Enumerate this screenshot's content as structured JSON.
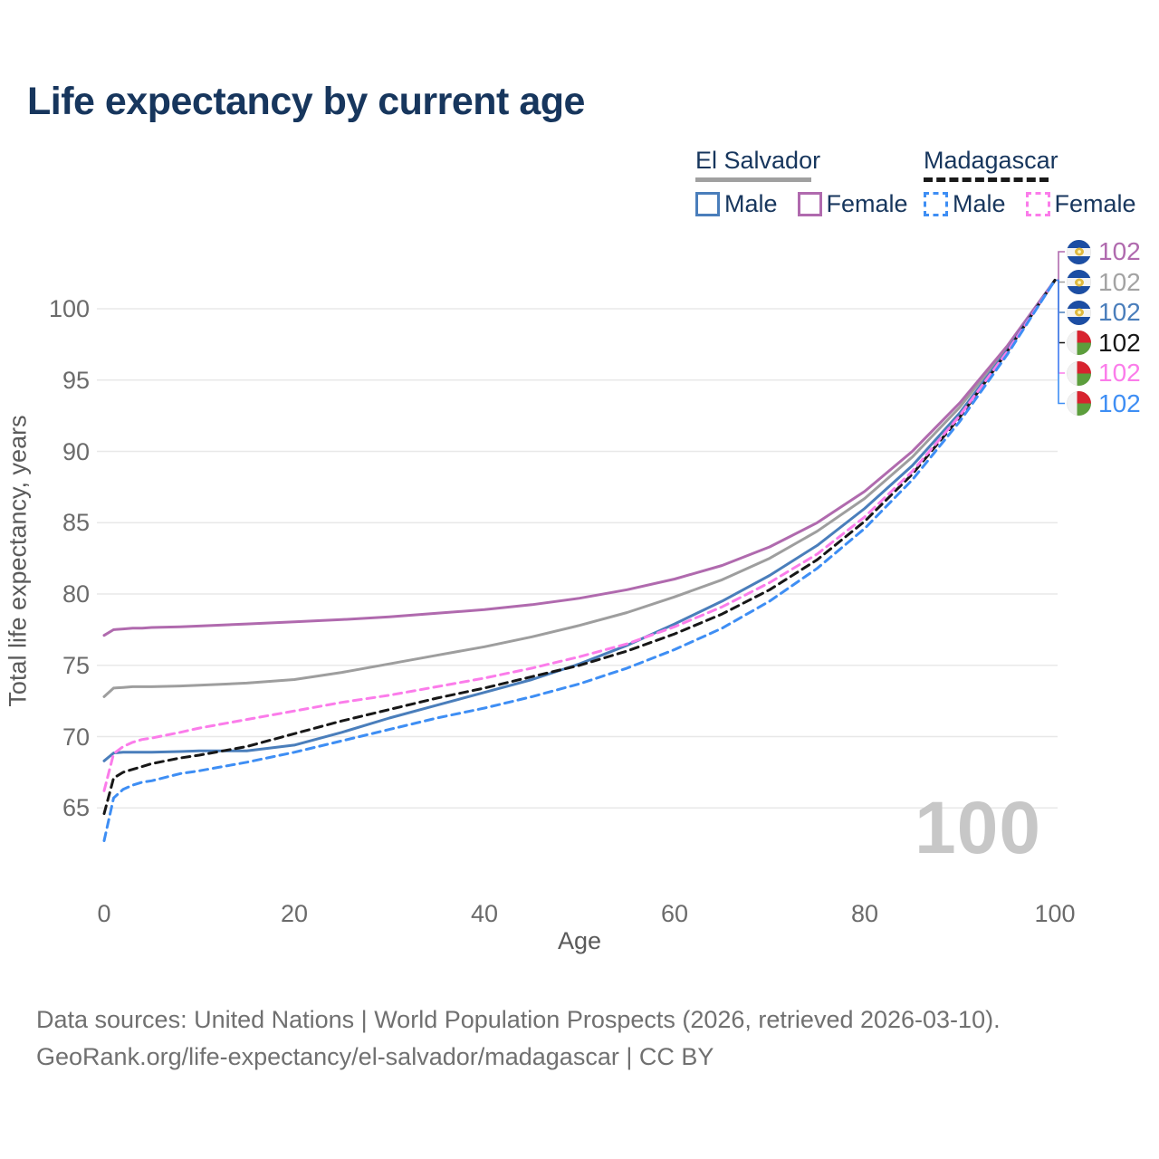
{
  "title": "Life expectancy by current age",
  "colors": {
    "heading_navy": "#17365d",
    "grid": "#e8e8e8",
    "tick_gray": "#6b6b6b",
    "watermark_gray": "#c7c7c7",
    "footer_gray": "#707070",
    "es_solid_underline": "#a0a0a0",
    "mg_dashed_underline": "#1a1a1a"
  },
  "legend": {
    "groups": [
      {
        "label": "El Salvador",
        "line_style": "solid",
        "underline_color": "#a0a0a0",
        "items": [
          {
            "label": "Male",
            "color": "#4a7ebb",
            "dashed": false
          },
          {
            "label": "Female",
            "color": "#b06aae",
            "dashed": false
          }
        ]
      },
      {
        "label": "Madagascar",
        "line_style": "dashed",
        "underline_color": "#1a1a1a",
        "items": [
          {
            "label": "Male",
            "color": "#3e8ef4",
            "dashed": true
          },
          {
            "label": "Female",
            "color": "#fb7cea",
            "dashed": true
          }
        ]
      }
    ]
  },
  "chart_data": {
    "type": "line",
    "title": "Life expectancy by current age",
    "xlabel": "Age",
    "ylabel": "Total life expectancy, years",
    "xlim": [
      0,
      100
    ],
    "ylim": [
      62,
      103
    ],
    "x_ticks": [
      0,
      20,
      40,
      60,
      80,
      100
    ],
    "y_ticks": [
      65,
      70,
      75,
      80,
      85,
      90,
      95,
      100
    ],
    "grid": true,
    "legend_position": "top-right",
    "x": [
      0,
      1,
      2,
      3,
      4,
      5,
      8,
      10,
      15,
      20,
      25,
      30,
      35,
      40,
      45,
      50,
      55,
      60,
      65,
      70,
      75,
      80,
      85,
      90,
      95,
      100
    ],
    "series": [
      {
        "id": "es-female",
        "country": "El Salvador",
        "sex": "Female",
        "color": "#b06aae",
        "dashed": false,
        "values": [
          77.1,
          77.5,
          77.55,
          77.6,
          77.6,
          77.65,
          77.7,
          77.75,
          77.9,
          78.05,
          78.2,
          78.4,
          78.65,
          78.9,
          79.25,
          79.7,
          80.3,
          81.05,
          82.0,
          83.3,
          85.0,
          87.2,
          90.0,
          93.4,
          97.4,
          102
        ]
      },
      {
        "id": "es-both",
        "country": "El Salvador",
        "sex": "Both sexes",
        "color": "#9e9e9e",
        "dashed": false,
        "values": [
          72.8,
          73.4,
          73.45,
          73.5,
          73.5,
          73.5,
          73.55,
          73.6,
          73.75,
          74.0,
          74.5,
          75.1,
          75.7,
          76.3,
          77.0,
          77.8,
          78.7,
          79.8,
          81.0,
          82.5,
          84.4,
          86.7,
          89.6,
          93.1,
          97.3,
          102
        ]
      },
      {
        "id": "es-male",
        "country": "El Salvador",
        "sex": "Male",
        "color": "#4a7ebb",
        "dashed": false,
        "values": [
          68.3,
          68.85,
          68.9,
          68.9,
          68.9,
          68.9,
          68.95,
          69.0,
          69.0,
          69.4,
          70.3,
          71.3,
          72.2,
          73.1,
          74.0,
          75.1,
          76.4,
          77.9,
          79.5,
          81.3,
          83.4,
          86.0,
          89.0,
          92.7,
          97.1,
          102
        ]
      },
      {
        "id": "mg-both",
        "country": "Madagascar",
        "sex": "Both sexes",
        "color": "#171717",
        "dashed": true,
        "values": [
          64.6,
          67.1,
          67.5,
          67.7,
          67.9,
          68.1,
          68.5,
          68.7,
          69.3,
          70.2,
          71.1,
          71.9,
          72.7,
          73.4,
          74.2,
          75.0,
          76.0,
          77.2,
          78.6,
          80.3,
          82.4,
          85.1,
          88.4,
          92.4,
          97.0,
          102
        ]
      },
      {
        "id": "mg-female",
        "country": "Madagascar",
        "sex": "Female",
        "color": "#fb7cea",
        "dashed": true,
        "values": [
          66.2,
          68.8,
          69.3,
          69.6,
          69.8,
          69.9,
          70.3,
          70.6,
          71.2,
          71.8,
          72.4,
          72.9,
          73.5,
          74.1,
          74.8,
          75.6,
          76.5,
          77.7,
          79.1,
          80.8,
          82.8,
          85.4,
          88.6,
          92.5,
          97.0,
          102
        ]
      },
      {
        "id": "mg-male",
        "country": "Madagascar",
        "sex": "Male",
        "color": "#3e8ef4",
        "dashed": true,
        "values": [
          62.7,
          65.7,
          66.3,
          66.6,
          66.8,
          66.9,
          67.4,
          67.6,
          68.2,
          68.9,
          69.7,
          70.5,
          71.3,
          72.0,
          72.8,
          73.7,
          74.8,
          76.1,
          77.6,
          79.5,
          81.8,
          84.6,
          88.0,
          92.1,
          96.8,
          102
        ]
      }
    ]
  },
  "end_labels": [
    {
      "flag": "el-salvador",
      "value": "102",
      "color": "#b06aae"
    },
    {
      "flag": "el-salvador",
      "value": "102",
      "color": "#a3a3a3"
    },
    {
      "flag": "el-salvador",
      "value": "102",
      "color": "#4a7ebb"
    },
    {
      "flag": "madagascar",
      "value": "102",
      "color": "#171717"
    },
    {
      "flag": "madagascar",
      "value": "102",
      "color": "#fb7cea"
    },
    {
      "flag": "madagascar",
      "value": "102",
      "color": "#3e8ef4"
    }
  ],
  "watermark": "100",
  "footer": {
    "line1": "Data sources: United Nations | World Population Prospects (2026, retrieved 2026-03-10).",
    "line2": "GeoRank.org/life-expectancy/el-salvador/madagascar | CC BY"
  }
}
